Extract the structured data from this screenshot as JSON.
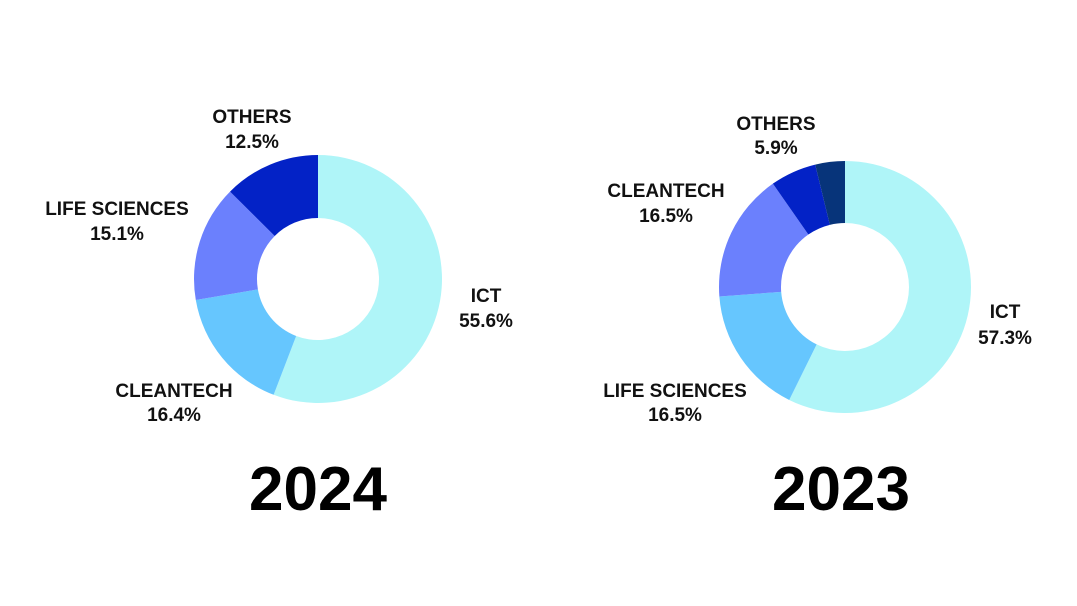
{
  "chart_data": [
    {
      "type": "pie",
      "title": "2024",
      "slices": [
        {
          "name": "ICT",
          "value": 55.6,
          "label": "55.6%",
          "color": "#aff5f8"
        },
        {
          "name": "CLEANTECH",
          "value": 16.4,
          "label": "16.4%",
          "color": "#66c6fe"
        },
        {
          "name": "LIFE SCIENCES",
          "value": 15.1,
          "label": "15.1%",
          "color": "#6b80fd"
        },
        {
          "name": "OTHERS",
          "value": 12.5,
          "label": "12.5%",
          "color": "#0322c6"
        }
      ]
    },
    {
      "type": "pie",
      "title": "2023",
      "slices": [
        {
          "name": "ICT",
          "value": 57.3,
          "label": "57.3%",
          "color": "#aff5f8"
        },
        {
          "name": "LIFE SCIENCES",
          "value": 16.5,
          "label": "16.5%",
          "color": "#66c6fe"
        },
        {
          "name": "CLEANTECH",
          "value": 16.5,
          "label": "16.5%",
          "color": "#6b80fd"
        },
        {
          "name": "OTHERS",
          "value": 5.9,
          "label": "5.9%",
          "color": "#0322c6"
        },
        {
          "value": 3.8,
          "color": "#07347a"
        }
      ]
    }
  ]
}
